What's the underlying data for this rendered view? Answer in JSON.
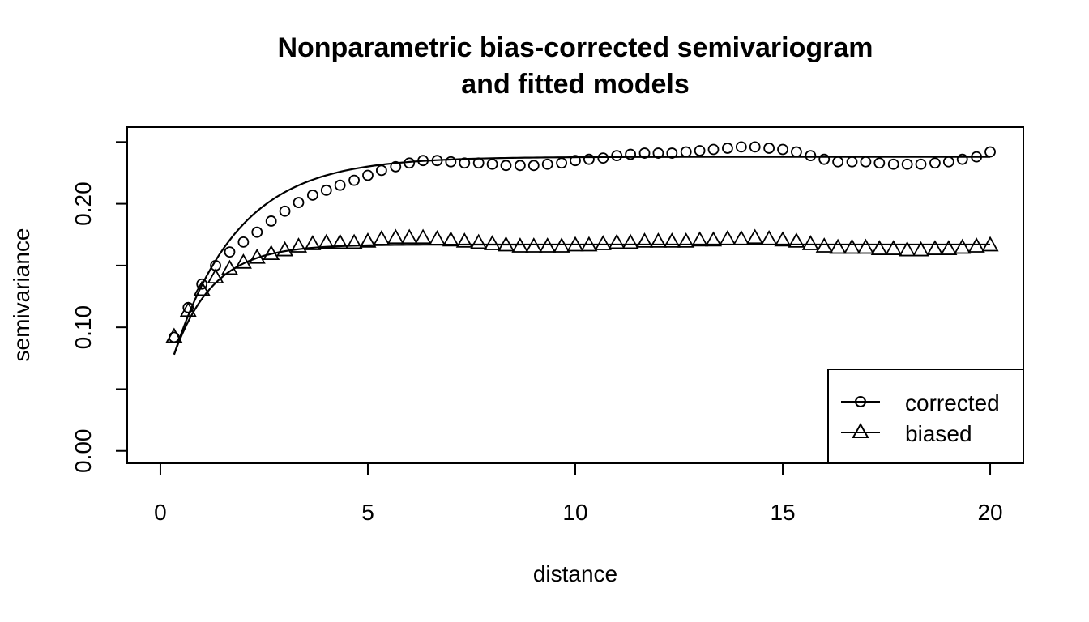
{
  "chart_data": {
    "type": "line",
    "title_lines": [
      "Nonparametric bias-corrected semivariogram",
      "and fitted models"
    ],
    "xlabel": "distance",
    "ylabel": "semivariance",
    "xlim": [
      -0.8,
      20.8
    ],
    "ylim": [
      -0.01,
      0.262
    ],
    "x_ticks": [
      0,
      5,
      10,
      15,
      20
    ],
    "x_tick_labels": [
      "0",
      "5",
      "10",
      "15",
      "20"
    ],
    "y_ticks": [
      0.0,
      0.05,
      0.1,
      0.15,
      0.2,
      0.25
    ],
    "y_tick_labels": [
      "0.00",
      "",
      "0.10",
      "",
      "0.20",
      ""
    ],
    "grid": false,
    "legend": {
      "placement": "bottom-right",
      "entries": [
        "corrected",
        "biased"
      ]
    },
    "x": [
      0.33,
      0.67,
      1.0,
      1.33,
      1.67,
      2.0,
      2.33,
      2.67,
      3.0,
      3.33,
      3.67,
      4.0,
      4.33,
      4.67,
      5.0,
      5.33,
      5.67,
      6.0,
      6.33,
      6.67,
      7.0,
      7.33,
      7.67,
      8.0,
      8.33,
      8.67,
      9.0,
      9.33,
      9.67,
      10.0,
      10.33,
      10.67,
      11.0,
      11.33,
      11.67,
      12.0,
      12.33,
      12.67,
      13.0,
      13.33,
      13.67,
      14.0,
      14.33,
      14.67,
      15.0,
      15.33,
      15.67,
      16.0,
      16.33,
      16.67,
      17.0,
      17.33,
      17.67,
      18.0,
      18.33,
      18.67,
      19.0,
      19.33,
      19.67,
      20.0
    ],
    "series": [
      {
        "name": "corrected",
        "marker": "circle",
        "values": [
          0.092,
          0.116,
          0.135,
          0.15,
          0.161,
          0.169,
          0.177,
          0.186,
          0.194,
          0.201,
          0.207,
          0.211,
          0.215,
          0.219,
          0.223,
          0.227,
          0.23,
          0.233,
          0.235,
          0.235,
          0.234,
          0.233,
          0.233,
          0.232,
          0.231,
          0.231,
          0.231,
          0.232,
          0.233,
          0.235,
          0.236,
          0.237,
          0.239,
          0.24,
          0.241,
          0.241,
          0.241,
          0.242,
          0.243,
          0.244,
          0.245,
          0.246,
          0.246,
          0.245,
          0.244,
          0.242,
          0.239,
          0.236,
          0.234,
          0.234,
          0.234,
          0.233,
          0.232,
          0.232,
          0.232,
          0.233,
          0.234,
          0.236,
          0.238,
          0.242
        ]
      },
      {
        "name": "biased",
        "marker": "triangle",
        "values": [
          0.092,
          0.113,
          0.13,
          0.14,
          0.147,
          0.152,
          0.156,
          0.159,
          0.162,
          0.165,
          0.167,
          0.168,
          0.168,
          0.168,
          0.169,
          0.171,
          0.172,
          0.172,
          0.172,
          0.171,
          0.17,
          0.169,
          0.168,
          0.167,
          0.166,
          0.165,
          0.165,
          0.165,
          0.165,
          0.166,
          0.166,
          0.167,
          0.168,
          0.168,
          0.169,
          0.169,
          0.169,
          0.169,
          0.17,
          0.17,
          0.171,
          0.171,
          0.172,
          0.171,
          0.17,
          0.169,
          0.167,
          0.165,
          0.164,
          0.164,
          0.164,
          0.163,
          0.163,
          0.162,
          0.162,
          0.163,
          0.163,
          0.164,
          0.165,
          0.166
        ]
      }
    ],
    "fitted": [
      {
        "sill": 0.238,
        "nugget": 0.078,
        "range_param": 1.55,
        "x_start": 0.33
      },
      {
        "sill": 0.167,
        "nugget": 0.078,
        "range_param": 0.95,
        "x_start": 0.33
      }
    ],
    "colors": {
      "foreground": "#000000",
      "background": "#ffffff"
    }
  }
}
